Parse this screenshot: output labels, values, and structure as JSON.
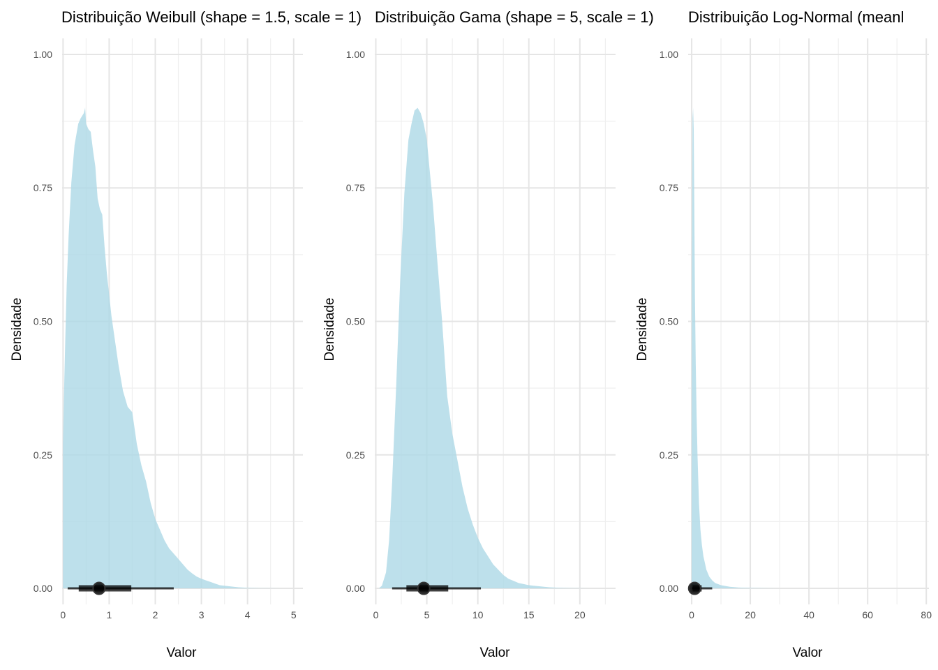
{
  "chart_data": [
    {
      "type": "area",
      "title": "Distribuição Weibull (shape = 1.5, scale = 1)",
      "xlabel": "Valor",
      "ylabel": "Densidade",
      "xlim": [
        -0.02,
        5.2
      ],
      "ylim": [
        -0.03,
        1.03
      ],
      "x_ticks": [
        0,
        1,
        2,
        3,
        4,
        5
      ],
      "y_ticks": [
        0,
        0.25,
        0.5,
        0.75,
        1.0
      ],
      "y_tick_labels": [
        "0.00",
        "0.25",
        "0.50",
        "0.75",
        "1.00"
      ],
      "fill_color": "#add8e6",
      "density": {
        "x": [
          0.0,
          0.02,
          0.05,
          0.08,
          0.12,
          0.18,
          0.25,
          0.33,
          0.38,
          0.45,
          0.48,
          0.5,
          0.55,
          0.6,
          0.65,
          0.7,
          0.75,
          0.8,
          0.85,
          0.9,
          0.95,
          1.0,
          1.05,
          1.1,
          1.15,
          1.2,
          1.3,
          1.4,
          1.5,
          1.55,
          1.6,
          1.7,
          1.8,
          1.9,
          2.0,
          2.1,
          2.2,
          2.3,
          2.4,
          2.5,
          2.6,
          2.7,
          2.8,
          2.9,
          3.0,
          3.1,
          3.2,
          3.3,
          3.4,
          3.5,
          3.6,
          3.7,
          3.8,
          4.0,
          4.3,
          4.6,
          4.8
        ],
        "y": [
          0.27,
          0.36,
          0.47,
          0.57,
          0.66,
          0.76,
          0.83,
          0.87,
          0.88,
          0.89,
          0.9,
          0.87,
          0.86,
          0.855,
          0.82,
          0.79,
          0.73,
          0.71,
          0.7,
          0.64,
          0.59,
          0.55,
          0.51,
          0.48,
          0.45,
          0.42,
          0.37,
          0.34,
          0.33,
          0.3,
          0.27,
          0.23,
          0.2,
          0.16,
          0.13,
          0.11,
          0.09,
          0.075,
          0.065,
          0.055,
          0.045,
          0.035,
          0.028,
          0.022,
          0.018,
          0.015,
          0.012,
          0.009,
          0.006,
          0.005,
          0.004,
          0.003,
          0.002,
          0.001,
          0.0005,
          0.0002,
          0.0
        ]
      },
      "interval": {
        "point": 0.78,
        "inner": [
          0.34,
          1.48
        ],
        "outer": [
          0.1,
          2.4
        ]
      }
    },
    {
      "type": "area",
      "title": "Distribuição Gama (shape = 5, scale = 1)",
      "xlabel": "Valor",
      "ylabel": "Densidade",
      "xlim": [
        -0.1,
        23.5
      ],
      "ylim": [
        -0.03,
        1.03
      ],
      "x_ticks": [
        0,
        5,
        10,
        15,
        20
      ],
      "y_ticks": [
        0,
        0.25,
        0.5,
        0.75,
        1.0
      ],
      "y_tick_labels": [
        "0.00",
        "0.25",
        "0.50",
        "0.75",
        "1.00"
      ],
      "fill_color": "#add8e6",
      "density": {
        "x": [
          0.3,
          0.6,
          1.0,
          1.3,
          1.6,
          2.0,
          2.4,
          2.8,
          3.2,
          3.5,
          3.8,
          4.1,
          4.4,
          4.7,
          5.0,
          5.3,
          5.6,
          6.0,
          6.5,
          7.0,
          7.5,
          8.0,
          8.5,
          9.0,
          9.5,
          10.0,
          10.5,
          11.0,
          11.5,
          12.0,
          12.5,
          13.0,
          13.5,
          14.0,
          14.5,
          15.0,
          16.0,
          17.0,
          18.0,
          19.0,
          20.0,
          21.0,
          22.0
        ],
        "y": [
          0.0,
          0.005,
          0.03,
          0.09,
          0.2,
          0.38,
          0.58,
          0.74,
          0.84,
          0.87,
          0.895,
          0.9,
          0.89,
          0.87,
          0.84,
          0.78,
          0.72,
          0.62,
          0.5,
          0.36,
          0.29,
          0.24,
          0.19,
          0.15,
          0.12,
          0.095,
          0.075,
          0.06,
          0.045,
          0.035,
          0.025,
          0.018,
          0.014,
          0.01,
          0.008,
          0.006,
          0.004,
          0.002,
          0.001,
          0.0006,
          0.0003,
          0.0001,
          0.0
        ]
      },
      "interval": {
        "point": 4.7,
        "inner": [
          3.0,
          7.1
        ],
        "outer": [
          1.6,
          10.3
        ]
      }
    },
    {
      "type": "area",
      "title": "Distribuição Log-Normal (meanl",
      "xlabel": "Valor",
      "ylabel": "Densidade",
      "xlim": [
        -1.2,
        80.9
      ],
      "ylim": [
        -0.03,
        1.03
      ],
      "x_ticks": [
        0,
        20,
        40,
        60,
        80
      ],
      "y_ticks": [
        0,
        0.25,
        0.5,
        0.75,
        1.0
      ],
      "y_tick_labels": [
        "0.00",
        "0.25",
        "0.50",
        "0.75",
        "1.00"
      ],
      "fill_color": "#add8e6",
      "density": {
        "x": [
          0.0,
          0.1,
          0.3,
          0.5,
          0.7,
          0.9,
          1.1,
          1.4,
          1.7,
          2.0,
          2.5,
          3.0,
          3.5,
          4.0,
          5.0,
          6.0,
          7.0,
          8.0,
          10.0,
          13.0,
          16.0,
          20.0,
          25.0,
          30.0
        ],
        "y": [
          0.0,
          0.6,
          0.88,
          0.9,
          0.86,
          0.72,
          0.55,
          0.42,
          0.32,
          0.25,
          0.16,
          0.11,
          0.08,
          0.06,
          0.035,
          0.022,
          0.015,
          0.01,
          0.006,
          0.003,
          0.0015,
          0.0008,
          0.0003,
          0.0
        ]
      },
      "interval": {
        "point": 1.0,
        "inner": [
          0.3,
          3.4
        ],
        "outer": [
          0.1,
          7.0
        ]
      }
    }
  ]
}
